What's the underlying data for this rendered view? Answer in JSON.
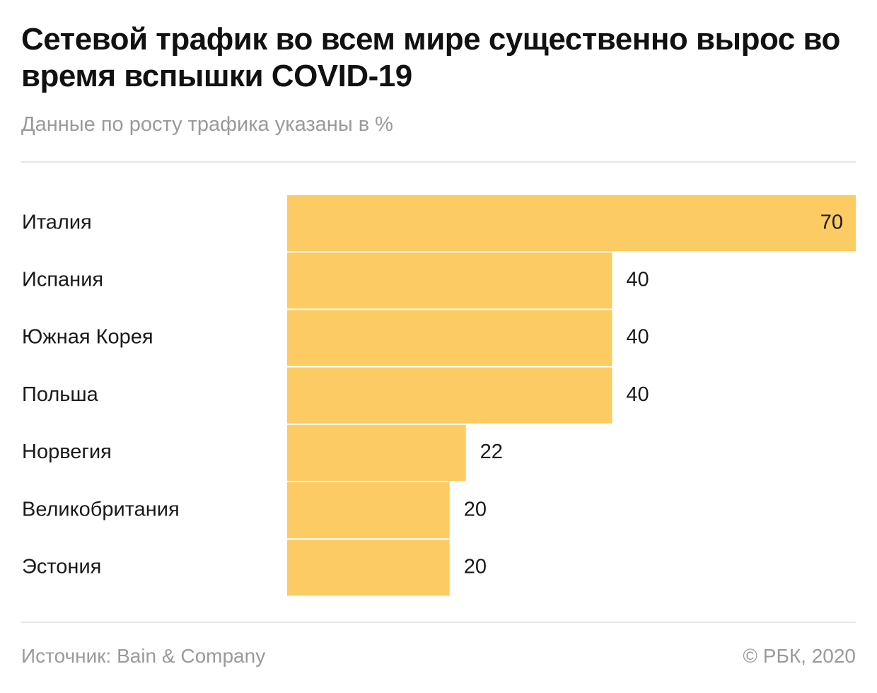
{
  "title": "Сетевой трафик во всем мире существенно вырос во время вспышки COVID-19",
  "subtitle": "Данные по росту трафика указаны в %",
  "footer": {
    "source": "Источник: Bain & Company",
    "copyright": "© РБК, 2020"
  },
  "colors": {
    "bar": "#fdcb64",
    "label": "#1a1a1a",
    "muted": "#9a9a9a"
  },
  "chart_data": {
    "type": "bar",
    "orientation": "horizontal",
    "categories": [
      "Италия",
      "Испания",
      "Южная Корея",
      "Польша",
      "Норвегия",
      "Великобритания",
      "Эстония"
    ],
    "values": [
      70,
      40,
      40,
      40,
      22,
      20,
      20
    ],
    "xlim": [
      0,
      70
    ],
    "grid": false,
    "legend": "none"
  }
}
